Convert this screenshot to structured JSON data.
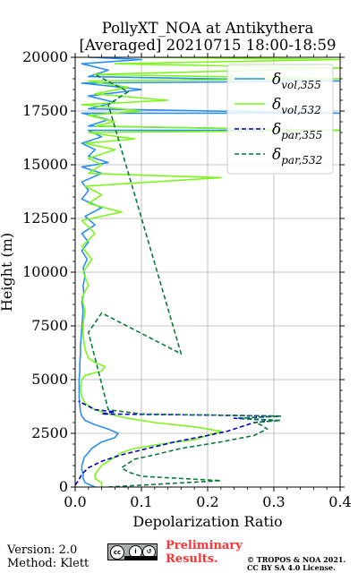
{
  "header": {
    "title_line1": "PollyXT_NOA at Antikythera",
    "title_line2": "[Averaged] 20210715 18:00-18:59"
  },
  "footer": {
    "version": "Version: 2.0",
    "method": "Method: Klett",
    "license_badge_icon": "cc-by-sa-icon",
    "preliminary_line1": "Preliminary",
    "preliminary_line2": "Results.",
    "copyright_line1": "© TROPOS & NOA 2021.",
    "copyright_line2": "CC BY SA 4.0 License.",
    "preliminary_color": "#ff3333"
  },
  "chart_data": {
    "type": "line",
    "xlabel": "Depolarization Ratio",
    "ylabel": "Height (m)",
    "xlim": [
      0,
      0.4
    ],
    "ylim": [
      0,
      20000
    ],
    "xticks": [
      "0.0",
      "0.1",
      "0.2",
      "0.3",
      "0.4"
    ],
    "yticks": [
      "0",
      "2500",
      "5000",
      "7500",
      "10000",
      "12500",
      "15000",
      "17500",
      "20000"
    ],
    "grid": true,
    "legend_position": "top-right",
    "series": [
      {
        "name": "δvol,355",
        "color": "#2b8ff0",
        "dash": "solid",
        "points": [
          [
            0.03,
            0
          ],
          [
            0.015,
            200
          ],
          [
            0.012,
            400
          ],
          [
            0.012,
            600
          ],
          [
            0.01,
            800
          ],
          [
            0.01,
            1000
          ],
          [
            0.012,
            1200
          ],
          [
            0.014,
            1400
          ],
          [
            0.02,
            1600
          ],
          [
            0.025,
            1800
          ],
          [
            0.03,
            1900
          ],
          [
            0.04,
            2100
          ],
          [
            0.06,
            2300
          ],
          [
            0.065,
            2500
          ],
          [
            0.05,
            2700
          ],
          [
            0.03,
            2900
          ],
          [
            0.015,
            3100
          ],
          [
            0.01,
            3300
          ],
          [
            0.008,
            3500
          ],
          [
            0.007,
            3800
          ],
          [
            0.006,
            4200
          ],
          [
            0.006,
            4600
          ],
          [
            0.006,
            5000
          ],
          [
            0.007,
            5400
          ],
          [
            0.007,
            5800
          ],
          [
            0.008,
            6200
          ],
          [
            0.008,
            6600
          ],
          [
            0.009,
            7000
          ],
          [
            0.01,
            7400
          ],
          [
            0.011,
            7800
          ],
          [
            0.012,
            8200
          ],
          [
            0.01,
            8600
          ],
          [
            0.013,
            9000
          ],
          [
            0.012,
            9400
          ],
          [
            0.015,
            9800
          ],
          [
            0.012,
            10200
          ],
          [
            0.018,
            10600
          ],
          [
            0.01,
            11000
          ],
          [
            0.02,
            11400
          ],
          [
            0.01,
            11800
          ],
          [
            0.03,
            12200
          ],
          [
            0.015,
            12600
          ],
          [
            0.04,
            13000
          ],
          [
            0.01,
            13400
          ],
          [
            0.02,
            13800
          ],
          [
            0.01,
            14200
          ],
          [
            0.04,
            14600
          ],
          [
            0.01,
            14900
          ],
          [
            0.05,
            15100
          ],
          [
            0.02,
            15400
          ],
          [
            0.03,
            15700
          ],
          [
            0.01,
            16000
          ],
          [
            0.04,
            16300
          ],
          [
            0.02,
            16600
          ],
          [
            0.4,
            16600
          ],
          [
            0.02,
            16800
          ],
          [
            0.05,
            17100
          ],
          [
            0.01,
            17400
          ],
          [
            0.4,
            17400
          ],
          [
            0.02,
            17600
          ],
          [
            0.06,
            17900
          ],
          [
            0.02,
            18200
          ],
          [
            0.1,
            18500
          ],
          [
            0.01,
            18800
          ],
          [
            0.4,
            18900
          ],
          [
            0.02,
            19100
          ],
          [
            0.05,
            19400
          ],
          [
            0.01,
            19700
          ],
          [
            0.1,
            19900
          ],
          [
            0.02,
            20000
          ]
        ]
      },
      {
        "name": "δvol,532",
        "color": "#7ff51f",
        "dash": "solid",
        "points": [
          [
            0.04,
            0
          ],
          [
            0.04,
            200
          ],
          [
            0.03,
            400
          ],
          [
            0.03,
            600
          ],
          [
            0.035,
            800
          ],
          [
            0.04,
            1000
          ],
          [
            0.05,
            1200
          ],
          [
            0.06,
            1400
          ],
          [
            0.07,
            1600
          ],
          [
            0.09,
            1800
          ],
          [
            0.13,
            2000
          ],
          [
            0.18,
            2200
          ],
          [
            0.2,
            2400
          ],
          [
            0.22,
            2600
          ],
          [
            0.18,
            2800
          ],
          [
            0.12,
            3000
          ],
          [
            0.08,
            3200
          ],
          [
            0.05,
            3400
          ],
          [
            0.03,
            3600
          ],
          [
            0.015,
            3900
          ],
          [
            0.01,
            4200
          ],
          [
            0.008,
            4600
          ],
          [
            0.01,
            5000
          ],
          [
            0.015,
            5200
          ],
          [
            0.04,
            5400
          ],
          [
            0.045,
            5600
          ],
          [
            0.03,
            5800
          ],
          [
            0.02,
            6000
          ],
          [
            0.015,
            6400
          ],
          [
            0.012,
            7000
          ],
          [
            0.012,
            7600
          ],
          [
            0.015,
            8200
          ],
          [
            0.01,
            8800
          ],
          [
            0.02,
            9400
          ],
          [
            0.012,
            10000
          ],
          [
            0.025,
            10600
          ],
          [
            0.01,
            11200
          ],
          [
            0.03,
            11800
          ],
          [
            0.01,
            12400
          ],
          [
            0.07,
            12800
          ],
          [
            0.02,
            13200
          ],
          [
            0.04,
            13600
          ],
          [
            0.015,
            14000
          ],
          [
            0.22,
            14400
          ],
          [
            0.02,
            14600
          ],
          [
            0.04,
            15000
          ],
          [
            0.02,
            15300
          ],
          [
            0.06,
            15700
          ],
          [
            0.015,
            16000
          ],
          [
            0.09,
            16200
          ],
          [
            0.02,
            16500
          ],
          [
            0.4,
            16600
          ],
          [
            0.03,
            16800
          ],
          [
            0.06,
            17000
          ],
          [
            0.02,
            17300
          ],
          [
            0.1,
            17500
          ],
          [
            0.01,
            17800
          ],
          [
            0.14,
            18000
          ],
          [
            0.03,
            18300
          ],
          [
            0.08,
            18600
          ],
          [
            0.02,
            18900
          ],
          [
            0.4,
            19000
          ],
          [
            0.03,
            19200
          ],
          [
            0.4,
            19500
          ],
          [
            0.06,
            19700
          ],
          [
            0.4,
            19900
          ],
          [
            0.1,
            20000
          ]
        ]
      },
      {
        "name": "δpar,355",
        "color": "#0000cc",
        "dash": "dashed",
        "points": [
          [
            0.0,
            100
          ],
          [
            0.005,
            300
          ],
          [
            0.01,
            600
          ],
          [
            0.02,
            900
          ],
          [
            0.04,
            1200
          ],
          [
            0.07,
            1500
          ],
          [
            0.11,
            1800
          ],
          [
            0.15,
            2100
          ],
          [
            0.2,
            2400
          ],
          [
            0.23,
            2600
          ],
          [
            0.25,
            2800
          ],
          [
            0.27,
            3000
          ],
          [
            0.3,
            3100
          ],
          [
            0.24,
            3200
          ],
          [
            0.31,
            3300
          ],
          [
            0.2,
            3350
          ],
          [
            0.04,
            3400
          ],
          [
            0.06,
            3500
          ],
          [
            0.03,
            3600
          ],
          [
            0.005,
            4000
          ]
        ]
      },
      {
        "name": "δpar,532",
        "color": "#0a7a3c",
        "dash": "dashed",
        "points": [
          [
            0.05,
            0
          ],
          [
            0.22,
            300
          ],
          [
            0.1,
            500
          ],
          [
            0.08,
            700
          ],
          [
            0.07,
            900
          ],
          [
            0.08,
            1100
          ],
          [
            0.09,
            1300
          ],
          [
            0.12,
            1500
          ],
          [
            0.16,
            1800
          ],
          [
            0.22,
            2100
          ],
          [
            0.27,
            2400
          ],
          [
            0.29,
            2700
          ],
          [
            0.28,
            2900
          ],
          [
            0.27,
            3000
          ],
          [
            0.31,
            3100
          ],
          [
            0.25,
            3200
          ],
          [
            0.31,
            3300
          ],
          [
            0.2,
            3350
          ],
          [
            0.1,
            3400
          ],
          [
            0.05,
            3600
          ],
          [
            0.02,
            7200
          ],
          [
            0.04,
            8100
          ],
          [
            0.16,
            6200
          ],
          [
            0.05,
            17800
          ],
          [
            0.08,
            18400
          ],
          [
            0.03,
            19200
          ]
        ]
      }
    ]
  }
}
